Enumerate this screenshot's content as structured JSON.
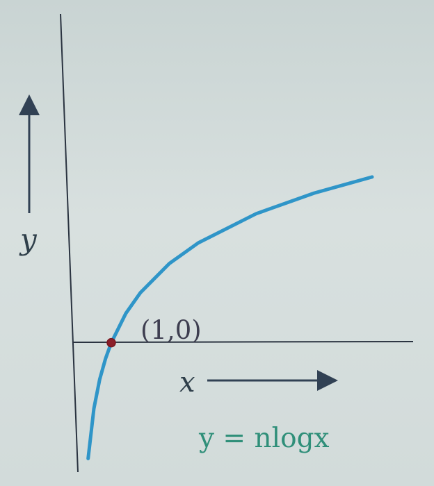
{
  "chart_data": {
    "type": "line",
    "title": "",
    "xlabel": "x",
    "ylabel": "y",
    "equation_label": "y = nlogx",
    "function": "y = n log x",
    "series": [
      {
        "name": "y = nlogx",
        "x": [
          0.2,
          0.4,
          0.6,
          0.8,
          1.0,
          1.5,
          2.0,
          3.0,
          4.0,
          6.0,
          8.0,
          10.0
        ],
        "y": [
          -1.609,
          -0.916,
          -0.511,
          -0.223,
          0.0,
          0.405,
          0.693,
          1.099,
          1.386,
          1.792,
          2.079,
          2.303
        ]
      }
    ],
    "marked_point": {
      "label": "(1,0)",
      "x": 1,
      "y": 0
    },
    "xlim": [
      -0.2,
      10.6
    ],
    "ylim": [
      -1.75,
      2.35
    ],
    "grid": false,
    "colors": {
      "curve": "#2f95c8",
      "axes": "#2a3340",
      "point_fill": "#8b1f2a",
      "equation": "#2f8f79"
    }
  }
}
